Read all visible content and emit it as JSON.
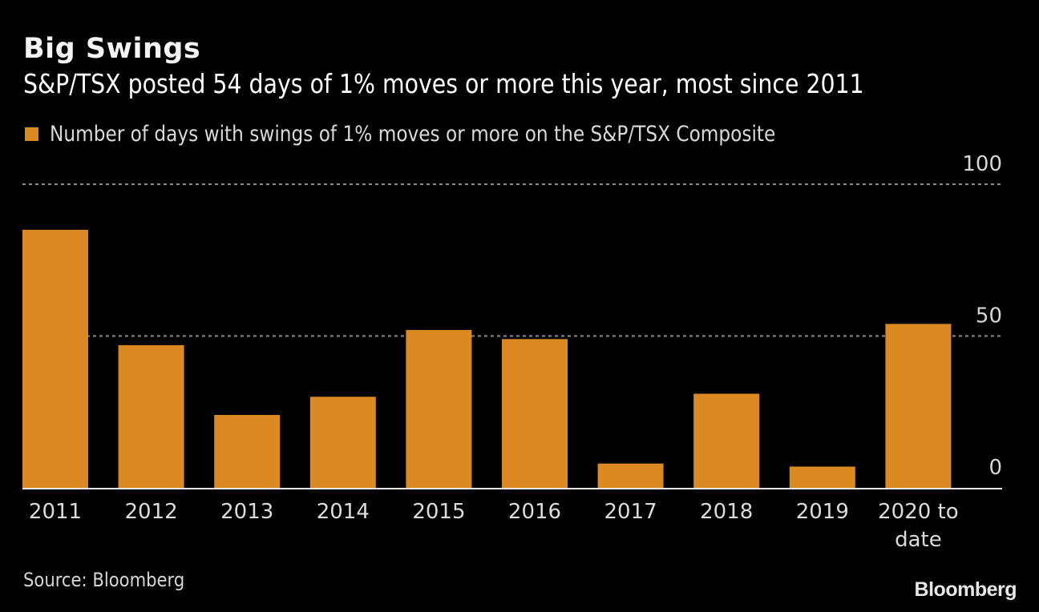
{
  "chart_data": {
    "type": "bar",
    "title": "Big Swings",
    "subtitle": "S&P/TSX posted 54 days of 1% moves or more this year, most since 2011",
    "legend": [
      {
        "name": "Number of days with swings of 1% moves or more on the S&P/TSX Composite",
        "color": "#db8a22"
      }
    ],
    "legend_position": "top-left",
    "categories": [
      "2011",
      "2012",
      "2013",
      "2014",
      "2015",
      "2016",
      "2017",
      "2018",
      "2019",
      "2020 to date"
    ],
    "series": [
      {
        "name": "Number of days with swings of 1% moves or more on the S&P/TSX Composite",
        "values": [
          85,
          47,
          24,
          30,
          52,
          49,
          8,
          31,
          7,
          54
        ]
      }
    ],
    "xlabel": "",
    "ylabel": "",
    "ylim": [
      0,
      100
    ],
    "yticks": [
      0,
      50,
      100
    ],
    "y_axis_side": "right",
    "grid": true,
    "source": "Source: Bloomberg",
    "brand": "Bloomberg"
  },
  "colors": {
    "bar": "#db8a22",
    "background": "#000000",
    "gridline": "#8c8c8c",
    "baseline": "#e6e6e6"
  }
}
